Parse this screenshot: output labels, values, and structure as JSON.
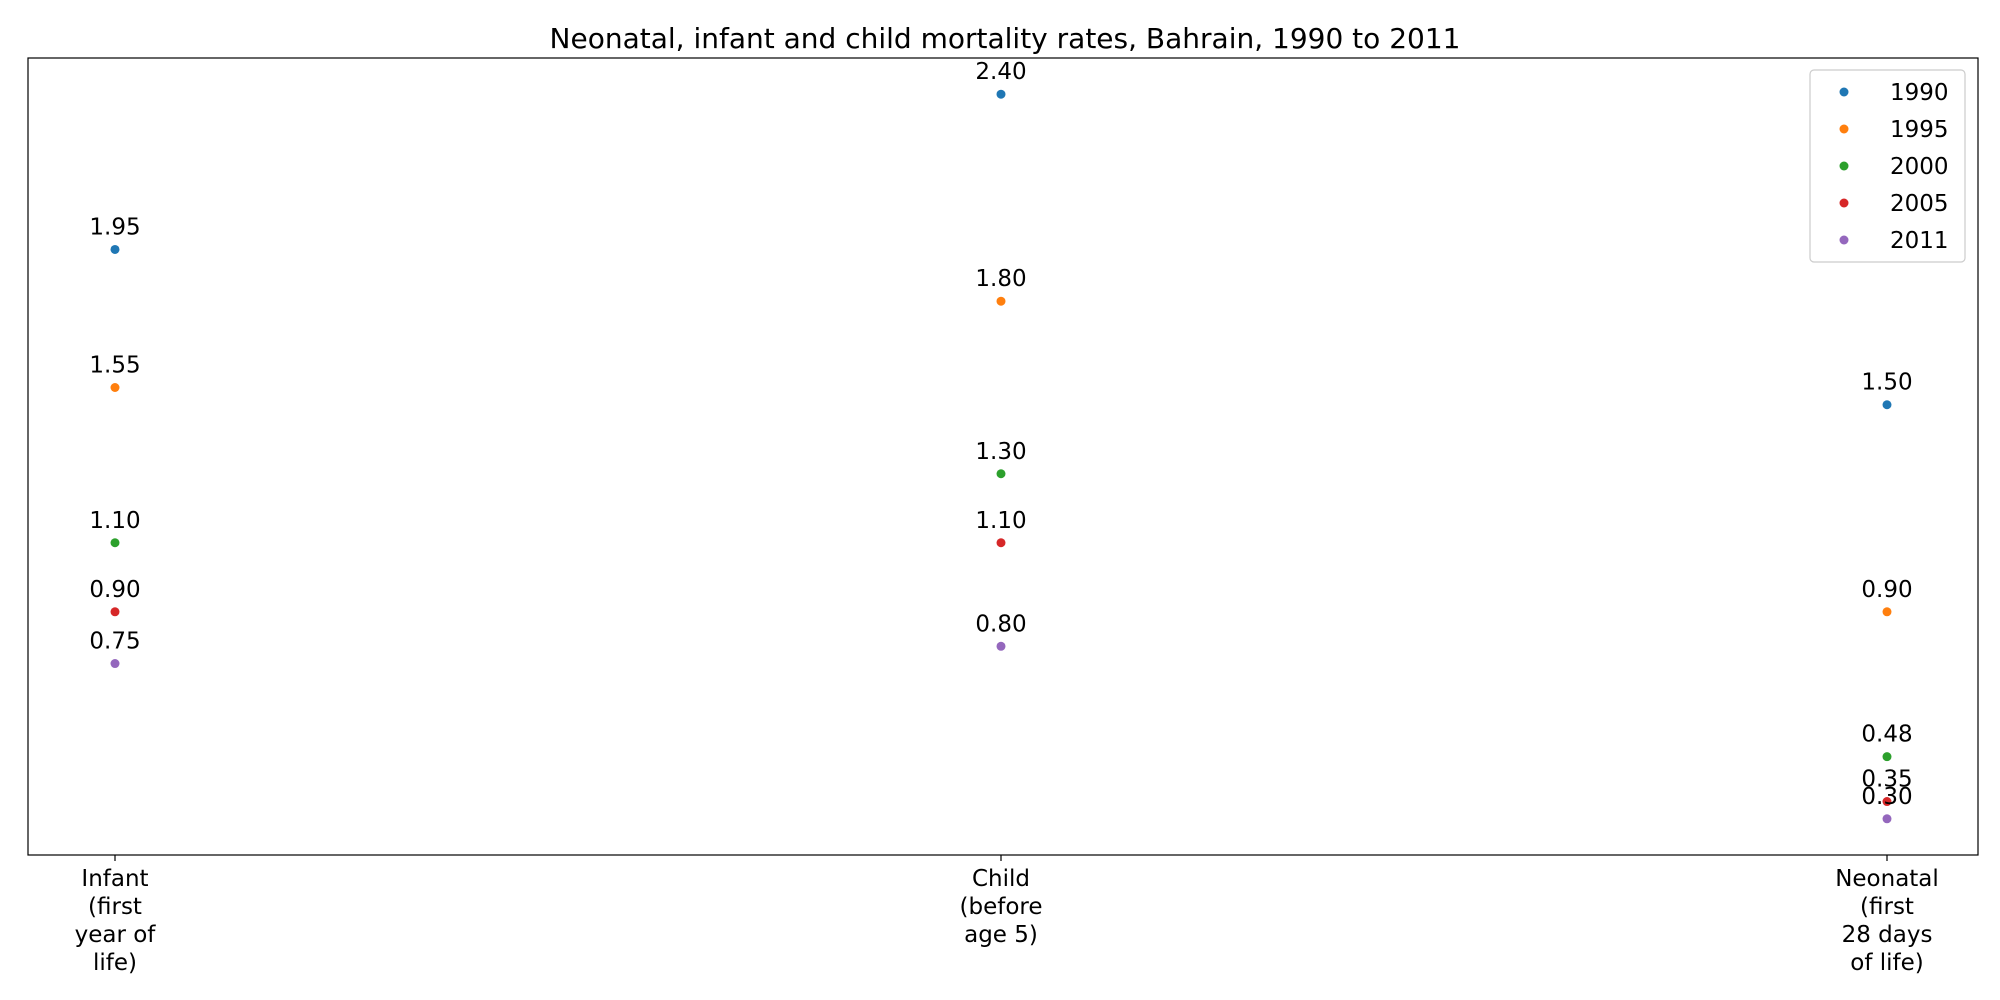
{
  "chart_data": {
    "type": "scatter",
    "title": "Neonatal, infant and child mortality rates, Bahrain, 1990 to 2011",
    "xlabel": "",
    "ylabel": "",
    "categories": [
      [
        "Infant",
        "(first",
        "year of",
        "life)"
      ],
      [
        "Child",
        "(before",
        "age 5)"
      ],
      [
        "Neonatal",
        "(first",
        "28 days",
        "of life)"
      ]
    ],
    "series": [
      {
        "name": "1990",
        "color": "#1f77b4",
        "values": [
          1.95,
          2.4,
          1.5
        ],
        "labels": [
          "1.95",
          "2.40",
          "1.50"
        ]
      },
      {
        "name": "1995",
        "color": "#ff7f0e",
        "values": [
          1.55,
          1.8,
          0.9
        ],
        "labels": [
          "1.55",
          "1.80",
          "0.90"
        ]
      },
      {
        "name": "2000",
        "color": "#2ca02c",
        "values": [
          1.1,
          1.3,
          0.48
        ],
        "labels": [
          "1.10",
          "1.30",
          "0.48"
        ]
      },
      {
        "name": "2005",
        "color": "#d62728",
        "values": [
          0.9,
          1.1,
          0.35
        ],
        "labels": [
          "0.90",
          "1.10",
          "0.35"
        ]
      },
      {
        "name": "2011",
        "color": "#9467bd",
        "values": [
          0.75,
          0.8,
          0.3
        ],
        "labels": [
          "0.75",
          "0.80",
          "0.30"
        ]
      }
    ],
    "ylim": [
      0.195,
      2.505
    ],
    "y_ticks_visible": false,
    "grid": false,
    "legend_position": "top-right"
  }
}
